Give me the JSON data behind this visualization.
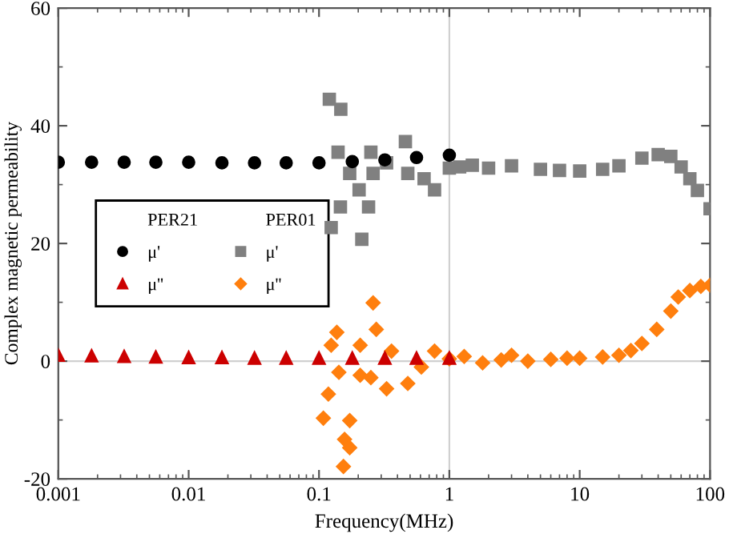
{
  "chart_data": {
    "type": "scatter",
    "xlabel": "Frequency(MHz)",
    "ylabel": "Complex magnetic permeability",
    "log": "x",
    "xlim": [
      0.001,
      100
    ],
    "xticks": [
      0.001,
      0.01,
      0.1,
      1,
      10,
      100
    ],
    "ylim": [
      -20,
      60
    ],
    "yticks": [
      -20,
      0,
      20,
      40,
      60
    ],
    "grid": false,
    "legend": "left",
    "annotations": [
      "PER21",
      "PER01"
    ],
    "ref_lines": [
      {
        "axis": "x",
        "value": 1,
        "color": "#d0d0d0"
      },
      {
        "axis": "y",
        "value": 0,
        "color": "#d0d0d0"
      }
    ],
    "series": [
      {
        "name": "μ'",
        "color": "#000000",
        "marker": "circle",
        "x": [
          0.001,
          0.0018,
          0.0032,
          0.0056,
          0.01,
          0.018,
          0.032,
          0.056,
          0.1,
          0.18,
          0.32,
          0.56,
          1
        ],
        "values": [
          33.8,
          33.8,
          33.8,
          33.8,
          33.8,
          33.7,
          33.7,
          33.7,
          33.7,
          33.9,
          34.2,
          34.6,
          35
        ]
      },
      {
        "name": "μ''",
        "color": "#cc0000",
        "marker": "triangle",
        "x": [
          0.001,
          0.0018,
          0.0032,
          0.0056,
          0.01,
          0.018,
          0.032,
          0.056,
          0.1,
          0.18,
          0.32,
          0.56,
          1
        ],
        "values": [
          1,
          0.9,
          0.8,
          0.7,
          0.6,
          0.6,
          0.5,
          0.5,
          0.5,
          0.5,
          0.5,
          0.5,
          0.5
        ]
      },
      {
        "name": "μ'",
        "color": "#808080",
        "marker": "square",
        "x": [
          0.12,
          0.147,
          0.14,
          0.124,
          0.213,
          0.146,
          0.24,
          0.172,
          0.203,
          0.26,
          0.25,
          0.33,
          0.46,
          0.48,
          0.64,
          0.77,
          1,
          1.2,
          1.5,
          2,
          3,
          5,
          7,
          10,
          15,
          20,
          30,
          40,
          50,
          60,
          70,
          80,
          100
        ],
        "values": [
          44.5,
          42.8,
          35.5,
          22.7,
          20.7,
          26.2,
          26.2,
          31.9,
          29.1,
          31.9,
          35.5,
          33.7,
          37.3,
          31.9,
          31,
          29.1,
          32.8,
          33,
          33.3,
          32.8,
          33.2,
          32.6,
          32.4,
          32.3,
          32.6,
          33.2,
          34.5,
          35.1,
          34.8,
          33,
          31,
          29,
          25.9
        ]
      },
      {
        "name": "μ''",
        "color": "#ff7f0e",
        "marker": "diamond",
        "x": [
          0.26,
          0.275,
          0.137,
          0.207,
          0.124,
          0.36,
          0.142,
          0.207,
          0.118,
          0.108,
          0.172,
          0.157,
          0.172,
          0.154,
          0.25,
          0.33,
          0.48,
          0.61,
          0.77,
          1,
          1.3,
          1.8,
          2.5,
          3,
          4,
          6,
          8,
          10,
          15,
          20,
          24.7,
          30,
          39,
          50,
          57,
          70,
          85,
          100
        ],
        "values": [
          9.9,
          5.4,
          4.9,
          2.7,
          2.7,
          1.7,
          -1.9,
          -2.4,
          -5.6,
          -9.7,
          -10.1,
          -13.3,
          -14.7,
          -17.9,
          -2.8,
          -4.7,
          -3.8,
          -1,
          1.7,
          0.4,
          0.8,
          -0.3,
          0.2,
          1,
          0,
          0.3,
          0.5,
          0.5,
          0.7,
          1,
          1.8,
          3,
          5.4,
          8.5,
          10.9,
          12,
          12.7,
          12.9
        ]
      }
    ]
  }
}
